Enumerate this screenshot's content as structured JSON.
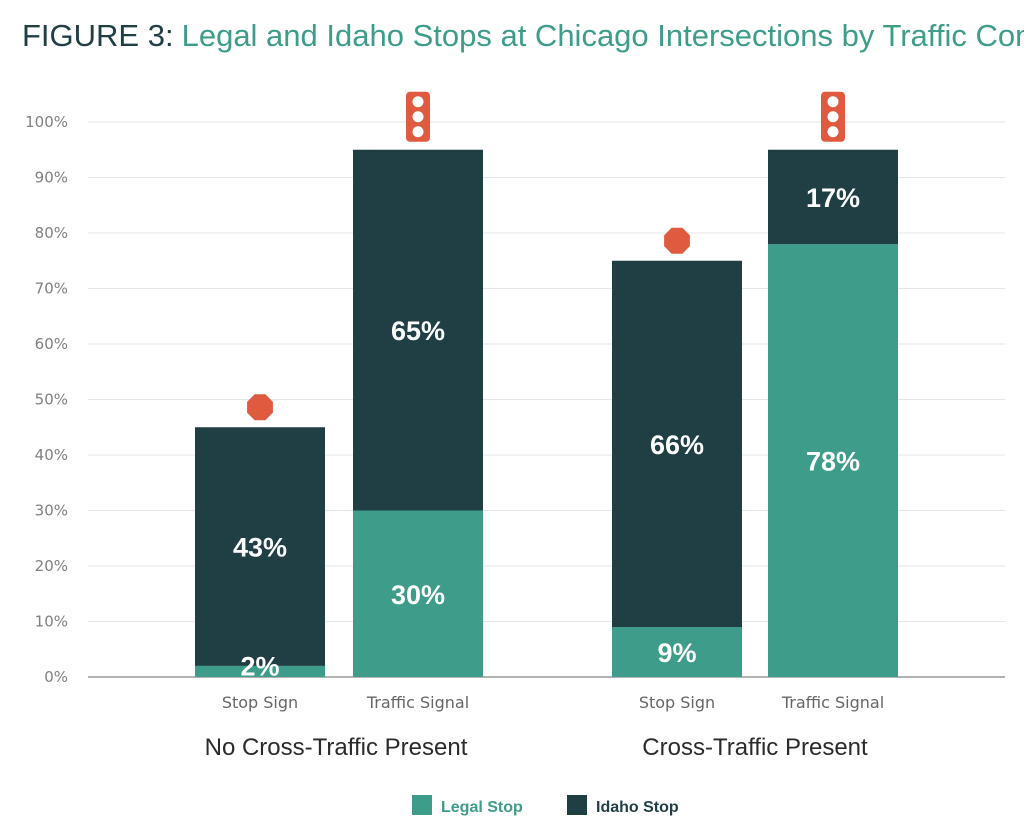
{
  "header": {
    "prefix": "FIGURE 3:",
    "title": "Legal and Idaho Stops at Chicago Intersections by Traffic Conditions"
  },
  "legend": {
    "items": [
      {
        "label": "Legal Stop",
        "color": "#3e9c8a"
      },
      {
        "label": "Idaho Stop",
        "color": "#1f3f44"
      }
    ],
    "position": "bottom-center"
  },
  "colors": {
    "legal": "#3e9c8a",
    "idaho": "#1f3f44",
    "icon": "#e05a3f"
  },
  "chart_data": {
    "type": "bar",
    "stacked": true,
    "title": "Legal and Idaho Stops at Chicago Intersections by Traffic Conditions",
    "ylim": [
      0,
      100
    ],
    "yticks": [
      "0%",
      "10%",
      "20%",
      "30%",
      "40%",
      "50%",
      "60%",
      "70%",
      "80%",
      "90%",
      "100%"
    ],
    "grid": true,
    "groups": [
      {
        "label": "No Cross-Traffic Present",
        "categories": [
          "Stop Sign",
          "Traffic Signal"
        ]
      },
      {
        "label": "Cross-Traffic Present",
        "categories": [
          "Stop Sign",
          "Traffic Signal"
        ]
      }
    ],
    "categories": [
      "Stop Sign",
      "Traffic Signal",
      "Stop Sign",
      "Traffic Signal"
    ],
    "series": [
      {
        "name": "Legal Stop",
        "values": [
          2,
          30,
          9,
          78
        ],
        "labels": [
          "2%",
          "30%",
          "9%",
          "78%"
        ]
      },
      {
        "name": "Idaho Stop",
        "values": [
          43,
          65,
          66,
          17
        ],
        "labels": [
          "43%",
          "65%",
          "66%",
          "17%"
        ]
      }
    ],
    "bar_icons": [
      "stop-sign-icon",
      "traffic-light-icon",
      "stop-sign-icon",
      "traffic-light-icon"
    ]
  }
}
